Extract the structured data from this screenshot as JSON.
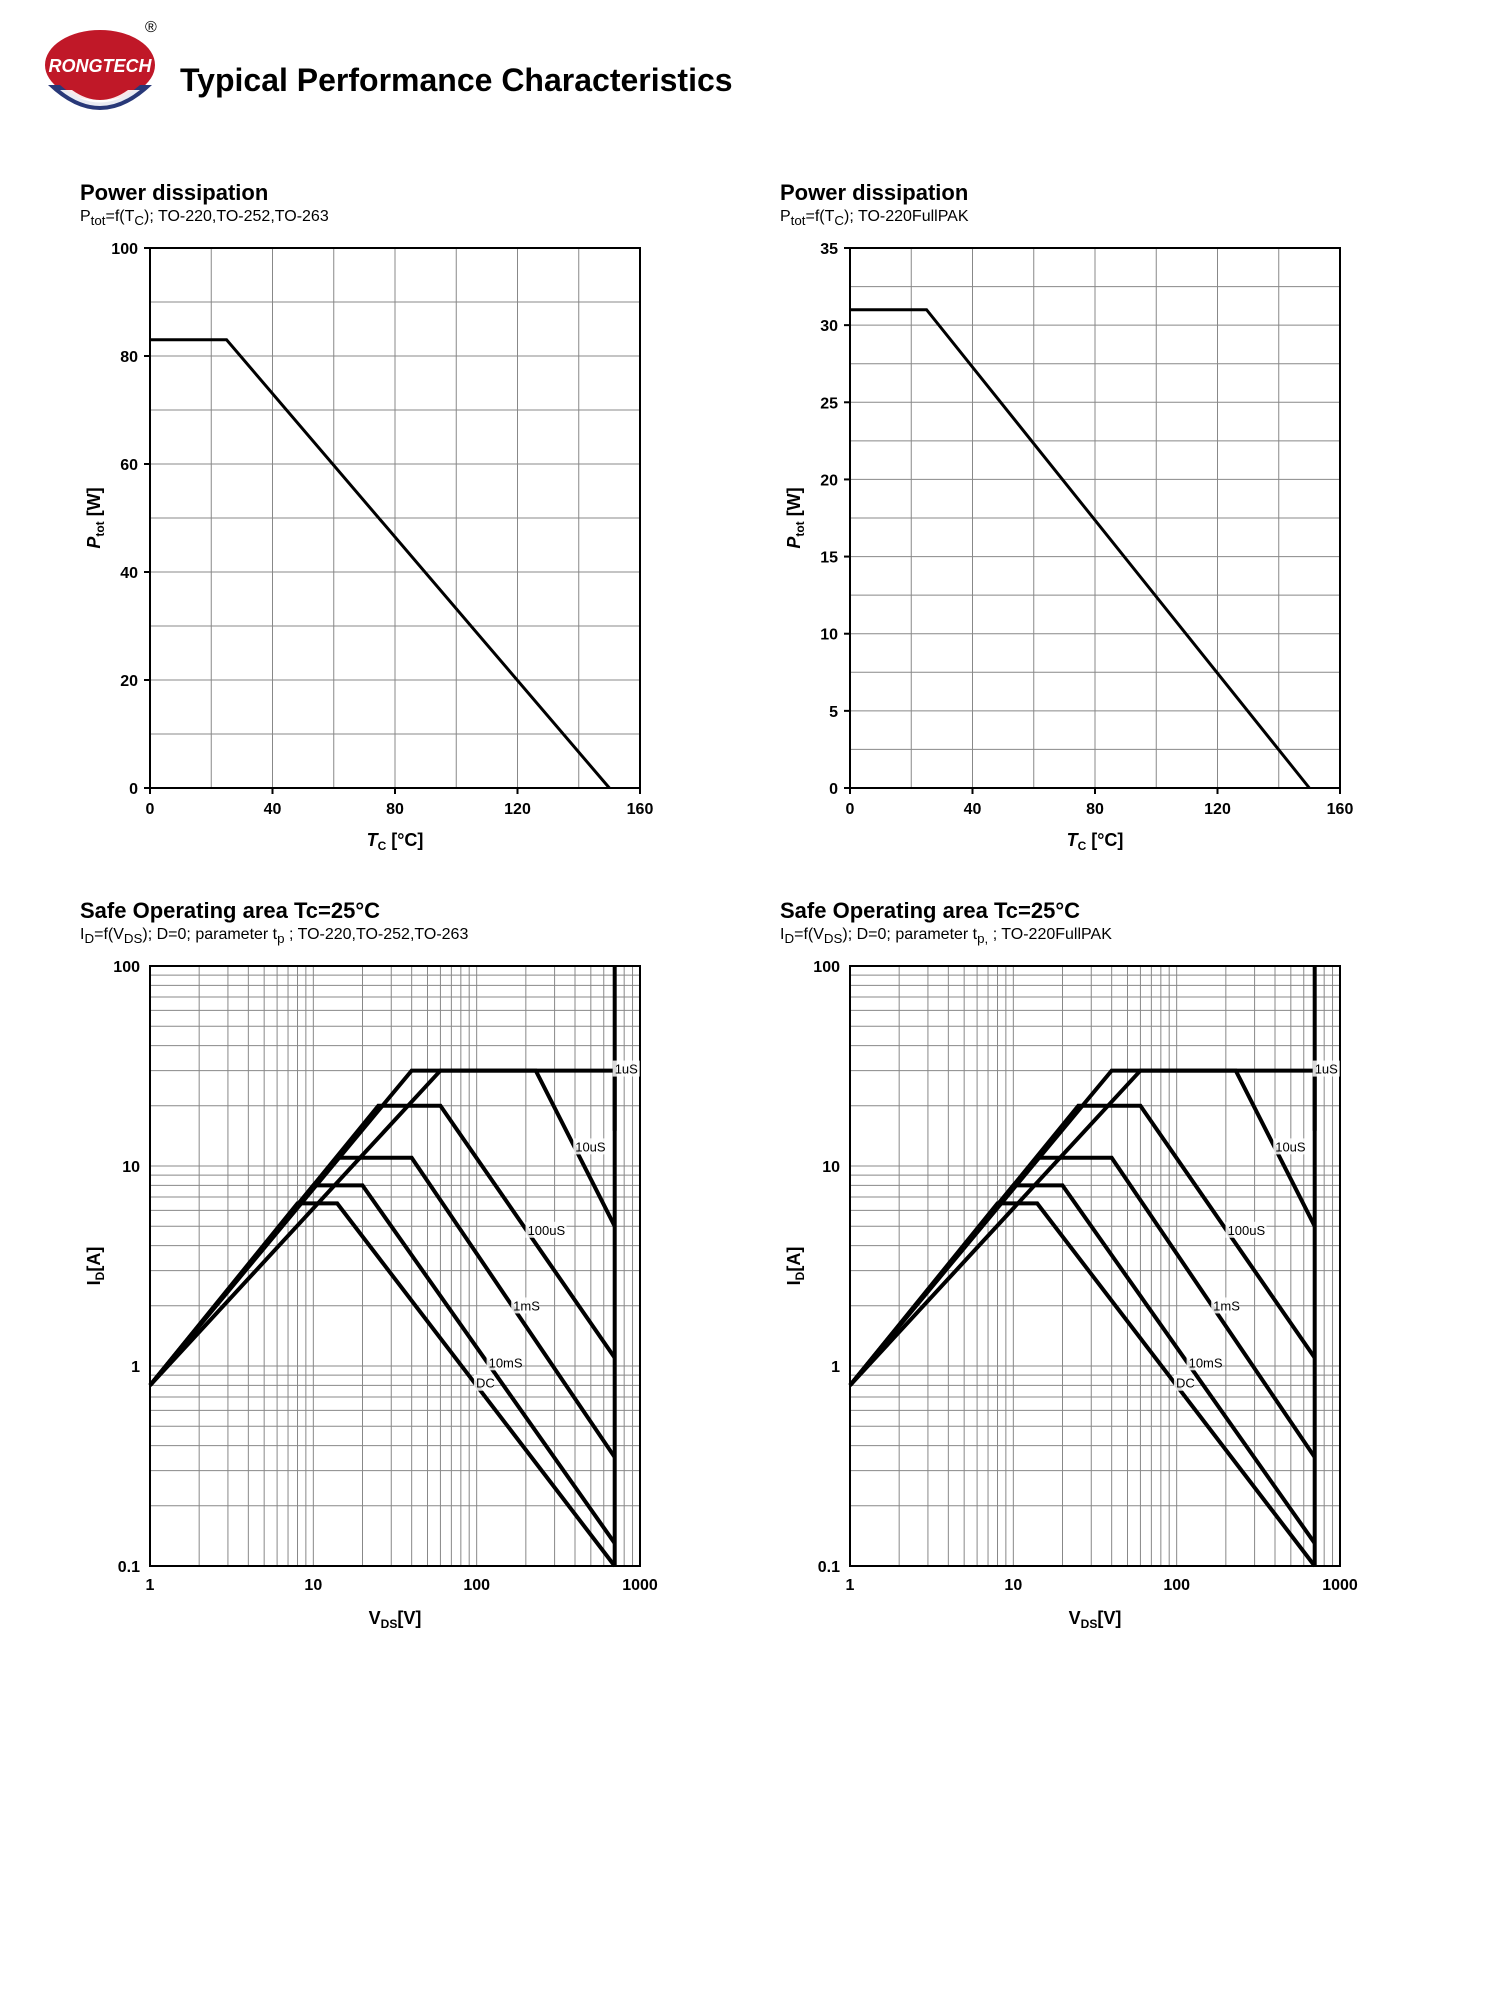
{
  "logo": {
    "brand": "RONGTECH",
    "registered": "®",
    "top_color": "#c01828",
    "bottom_color": "#283878",
    "text_color": "#ffffff"
  },
  "page_title": "Typical Performance Characteristics",
  "chart1": {
    "title": "Power dissipation",
    "subtitle_prefix": "P",
    "subtitle_sub1": "tot",
    "subtitle_mid": "=f(T",
    "subtitle_sub2": "C",
    "subtitle_suffix": "); TO-220,TO-252,TO-263",
    "type": "line",
    "xlabel_main": "T",
    "xlabel_sub": "C",
    "xlabel_unit": " [°C]",
    "ylabel_main": "P",
    "ylabel_sub": "tot",
    "ylabel_unit": " [W]",
    "xlim": [
      0,
      160
    ],
    "xtick_step": 40,
    "ylim": [
      0,
      100
    ],
    "ytick_step": 20,
    "minor_x_step": 20,
    "minor_y_step": 10,
    "data": [
      [
        0,
        83
      ],
      [
        25,
        83
      ],
      [
        150,
        0
      ]
    ],
    "grid_color": "#888888",
    "background_color": "#ffffff"
  },
  "chart2": {
    "title": "Power dissipation",
    "subtitle_prefix": "P",
    "subtitle_sub1": "tot",
    "subtitle_mid": "=f(T",
    "subtitle_sub2": "C",
    "subtitle_suffix": "); TO-220FullPAK",
    "type": "line",
    "xlabel_main": "T",
    "xlabel_sub": "C",
    "xlabel_unit": " [°C]",
    "ylabel_main": "P",
    "ylabel_sub": "tot",
    "ylabel_unit": " [W]",
    "xlim": [
      0,
      160
    ],
    "xtick_step": 40,
    "ylim": [
      0,
      35
    ],
    "ytick_step": 5,
    "minor_x_step": 20,
    "minor_y_step": 2.5,
    "data": [
      [
        0,
        31
      ],
      [
        25,
        31
      ],
      [
        150,
        0
      ]
    ],
    "grid_color": "#888888",
    "background_color": "#ffffff"
  },
  "chart3": {
    "title": "Safe Operating area Tc=25°C",
    "subtitle_prefix": "I",
    "subtitle_sub1": "D",
    "subtitle_mid": "=f(V",
    "subtitle_sub2": "DS",
    "subtitle_mid2": "); D=0; parameter t",
    "subtitle_sub3": "p",
    "subtitle_suffix": " ; TO-220,TO-252,TO-263",
    "type": "soa-loglog",
    "xlabel_main": "V",
    "xlabel_sub": "DS",
    "xlabel_unit": "[V]",
    "ylabel_main": "I",
    "ylabel_sub": "D",
    "ylabel_unit": "[A]",
    "xlim": [
      1,
      1000
    ],
    "ylim": [
      0.1,
      100
    ],
    "xticks": [
      1,
      10,
      100,
      1000
    ],
    "yticks": [
      0.1,
      1,
      10,
      100
    ],
    "rise_start": [
      1,
      0.8
    ],
    "vmax": 700,
    "series": [
      {
        "label": "1uS",
        "peak": [
          60,
          30
        ],
        "flat_to": 700,
        "drop_to": [
          700,
          15
        ]
      },
      {
        "label": "10uS",
        "peak": [
          40,
          30
        ],
        "flat_to": 230,
        "drop_to": [
          700,
          5
        ]
      },
      {
        "label": "100uS",
        "peak": [
          25,
          20
        ],
        "flat_to": 60,
        "drop_to": [
          700,
          1.1
        ]
      },
      {
        "label": "1mS",
        "peak": [
          14,
          11
        ],
        "flat_to": 40,
        "drop_to": [
          700,
          0.35
        ]
      },
      {
        "label": "10mS",
        "peak": [
          10,
          8
        ],
        "flat_to": 20,
        "drop_to": [
          700,
          0.13
        ]
      },
      {
        "label": "DC",
        "peak": [
          8,
          6.5
        ],
        "flat_to": 14,
        "drop_to": [
          700,
          0.1
        ]
      }
    ],
    "grid_color": "#888888"
  },
  "chart4": {
    "title": "Safe Operating area Tc=25°C",
    "subtitle_prefix": "I",
    "subtitle_sub1": "D",
    "subtitle_mid": "=f(V",
    "subtitle_sub2": "DS",
    "subtitle_mid2": "); D=0; parameter t",
    "subtitle_sub3": "p,",
    "subtitle_suffix": " ; TO-220FullPAK",
    "type": "soa-loglog",
    "xlabel_main": "V",
    "xlabel_sub": "DS",
    "xlabel_unit": "[V]",
    "ylabel_main": "I",
    "ylabel_sub": "D",
    "ylabel_unit": "[A]",
    "xlim": [
      1,
      1000
    ],
    "ylim": [
      0.1,
      100
    ],
    "xticks": [
      1,
      10,
      100,
      1000
    ],
    "yticks": [
      0.1,
      1,
      10,
      100
    ],
    "rise_start": [
      1,
      0.8
    ],
    "vmax": 700,
    "series": [
      {
        "label": "1uS",
        "peak": [
          60,
          30
        ],
        "flat_to": 700,
        "drop_to": [
          700,
          15
        ]
      },
      {
        "label": "10uS",
        "peak": [
          40,
          30
        ],
        "flat_to": 230,
        "drop_to": [
          700,
          5
        ]
      },
      {
        "label": "100uS",
        "peak": [
          25,
          20
        ],
        "flat_to": 60,
        "drop_to": [
          700,
          1.1
        ]
      },
      {
        "label": "1mS",
        "peak": [
          14,
          11
        ],
        "flat_to": 40,
        "drop_to": [
          700,
          0.35
        ]
      },
      {
        "label": "10mS",
        "peak": [
          10,
          8
        ],
        "flat_to": 20,
        "drop_to": [
          700,
          0.13
        ]
      },
      {
        "label": "DC",
        "peak": [
          8,
          6.5
        ],
        "flat_to": 14,
        "drop_to": [
          700,
          0.1
        ]
      }
    ],
    "grid_color": "#888888"
  }
}
